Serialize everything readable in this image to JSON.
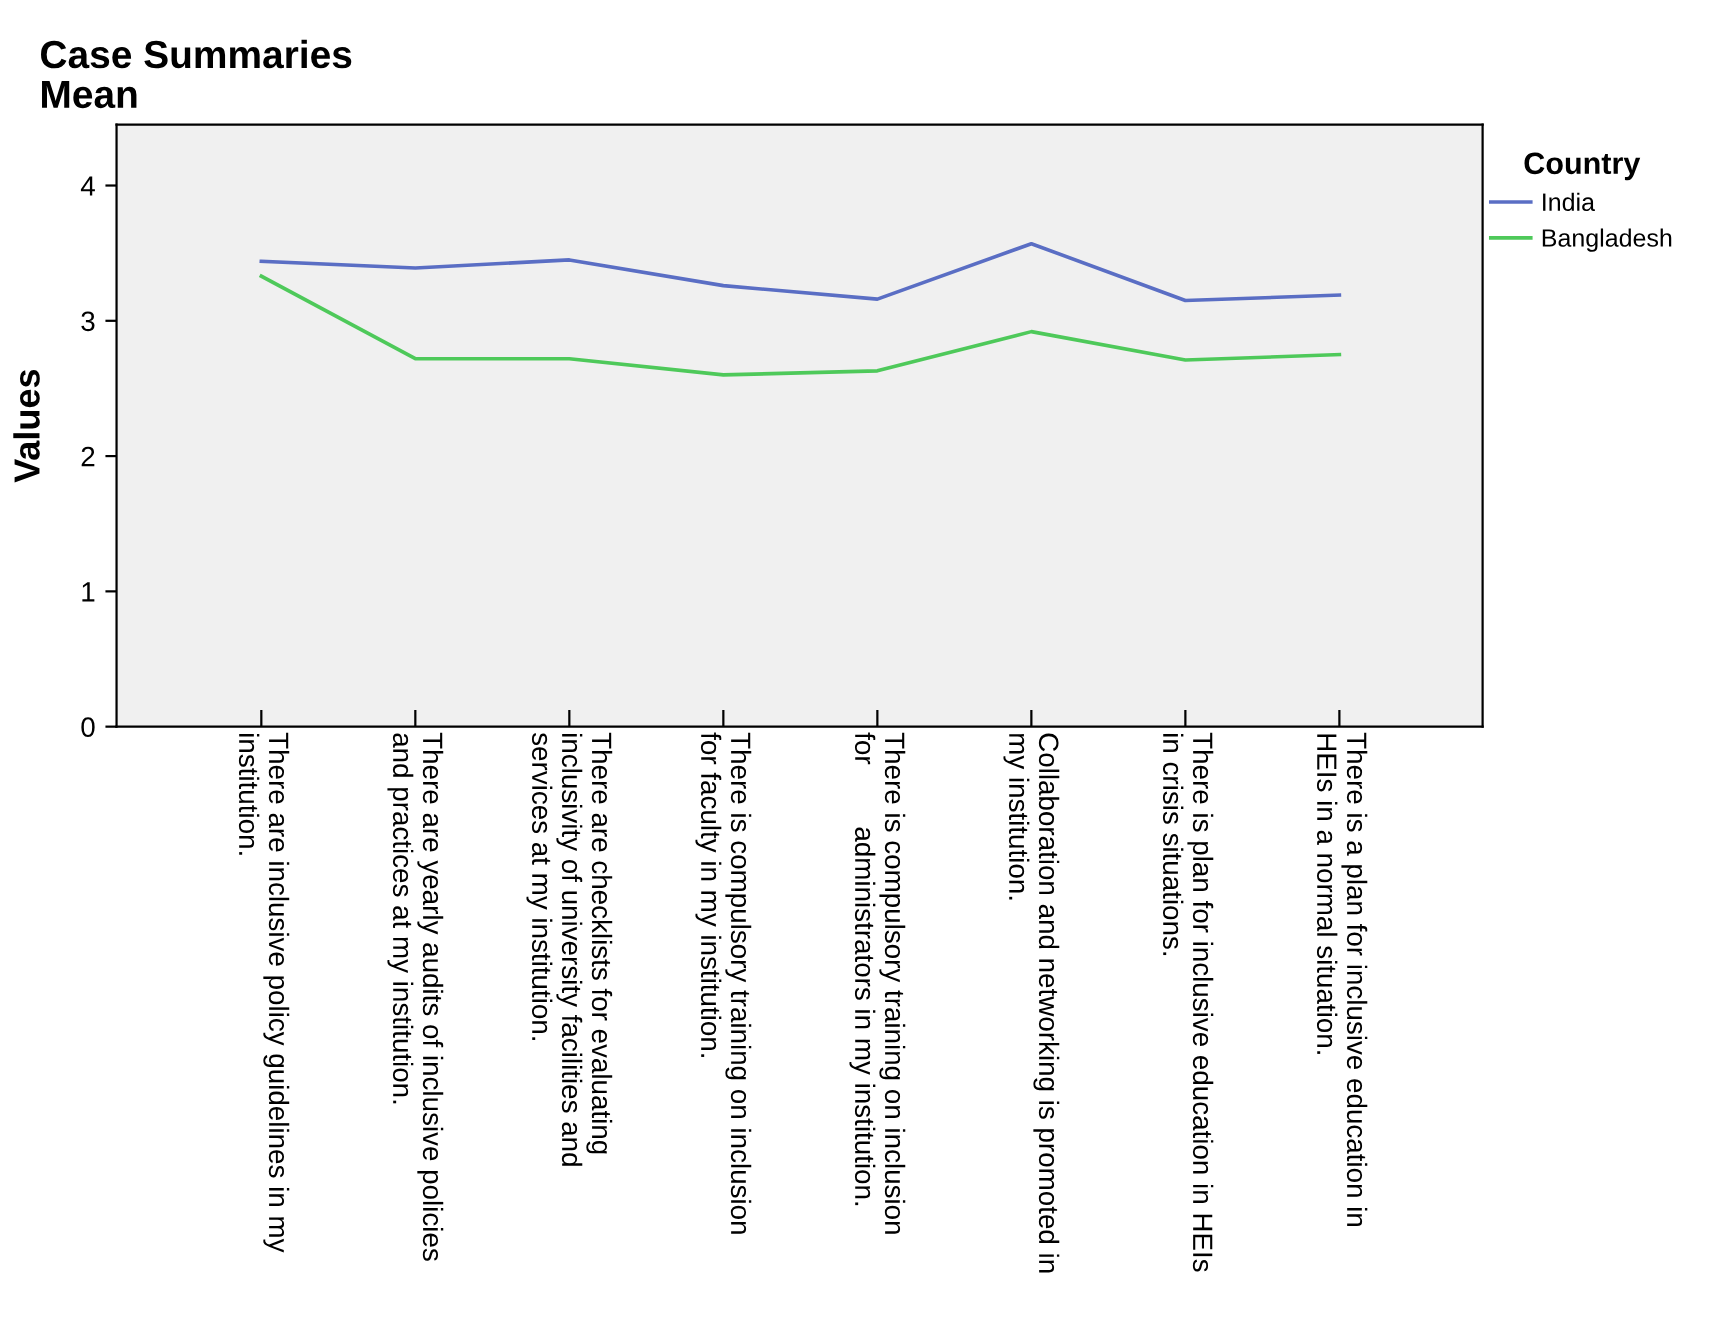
{
  "chart_data": {
    "type": "line",
    "title": "Case Summaries",
    "subtitle": "Mean",
    "ylabel": "Values",
    "legend_title": "Country",
    "legend": "top right",
    "categories": [
      "There are inclusive policy guidelines in my\ninstitution.",
      "There are yearly audits of inclusive policies\nand practices at my institution.",
      "There are checklists for evaluating\ninclusivity of university facilities and\nservices at my institution.",
      "There is compulsory training on inclusion\nfor faculty in my institution.",
      "There is compulsory training on inclusion\nfor        administrators in my institution.",
      "Collaboration and networking is promoted in\nmy institution.",
      "There is plan for inclusive education in HEIs\nin crisis situations.",
      "There is a plan for inclusive education in\nHEIs in a normal situation."
    ],
    "series": [
      {
        "name": "India",
        "color": "#5a6ec4",
        "values": [
          3.44,
          3.39,
          3.45,
          3.26,
          3.16,
          3.57,
          3.15,
          3.19
        ]
      },
      {
        "name": "Bangladesh",
        "color": "#4ec95a",
        "values": [
          3.33,
          2.72,
          2.72,
          2.6,
          2.63,
          2.92,
          2.71,
          2.75
        ]
      }
    ],
    "ylim": [
      0,
      4.45
    ],
    "yticks": [
      0,
      1,
      2,
      3,
      4
    ],
    "grid": false,
    "marker": "none",
    "line_style": "solid"
  }
}
